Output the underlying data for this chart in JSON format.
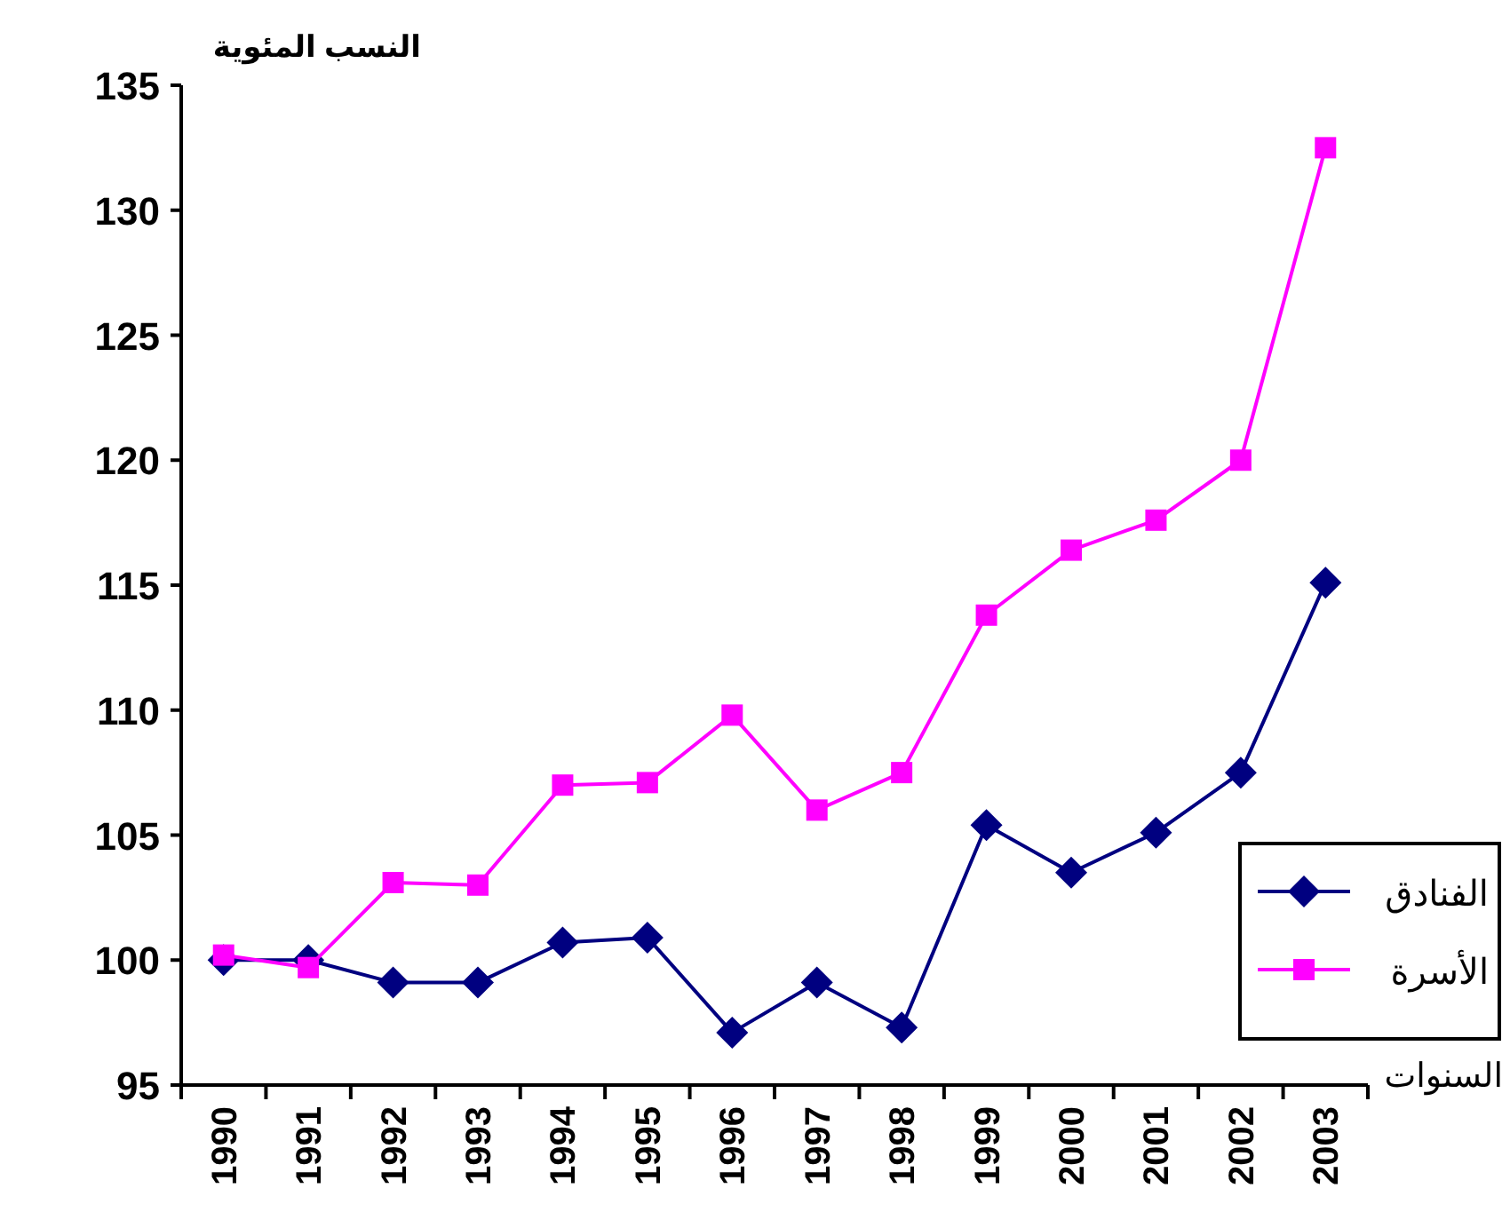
{
  "chart_data": {
    "type": "line",
    "ylabel": "النسب المئوية",
    "xlabel": "السنوات",
    "categories": [
      "1990",
      "1991",
      "1992",
      "1993",
      "1994",
      "1995",
      "1996",
      "1997",
      "1998",
      "1999",
      "2000",
      "2001",
      "2002",
      "2003"
    ],
    "series": [
      {
        "name": "الفنادق",
        "color": "#000080",
        "marker": "diamond",
        "values": [
          100,
          100,
          99.1,
          99.1,
          100.7,
          100.9,
          97.1,
          99.1,
          97.3,
          105.4,
          103.5,
          105.1,
          107.5,
          115.1
        ]
      },
      {
        "name": "الأسرة",
        "color": "#ff00ff",
        "marker": "square",
        "values": [
          100.2,
          99.7,
          103.1,
          103,
          107,
          107.1,
          109.8,
          106,
          107.5,
          113.8,
          116.4,
          117.6,
          120,
          132.5
        ]
      }
    ],
    "ylim": [
      95,
      135
    ],
    "yticks": [
      95,
      100,
      105,
      110,
      115,
      120,
      125,
      130,
      135
    ],
    "grid": false,
    "legend": "right",
    "line_style": "solid"
  }
}
